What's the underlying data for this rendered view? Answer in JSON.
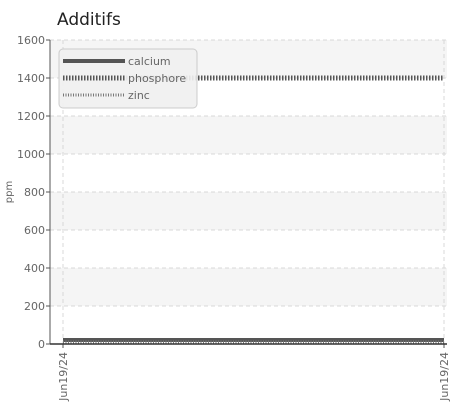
{
  "chart_data": {
    "type": "line",
    "title": "Additifs",
    "xlabel": "",
    "ylabel": "ppm",
    "ylim": [
      0,
      1600
    ],
    "yticks": [
      0,
      200,
      400,
      600,
      800,
      1000,
      1200,
      1400,
      1600
    ],
    "x_tick_labels": [
      "Jun19/24",
      "Jun19/24"
    ],
    "grid": true,
    "legend_position": "top-left",
    "series": [
      {
        "name": "calcium",
        "values": [
          0,
          0
        ],
        "color": "#555555",
        "style": "solid"
      },
      {
        "name": "phosphore",
        "values": [
          1400,
          1400
        ],
        "color": "#555555",
        "style": "dotted"
      },
      {
        "name": "zinc",
        "values": [
          0,
          0
        ],
        "color": "#777777",
        "style": "dotted"
      }
    ]
  }
}
